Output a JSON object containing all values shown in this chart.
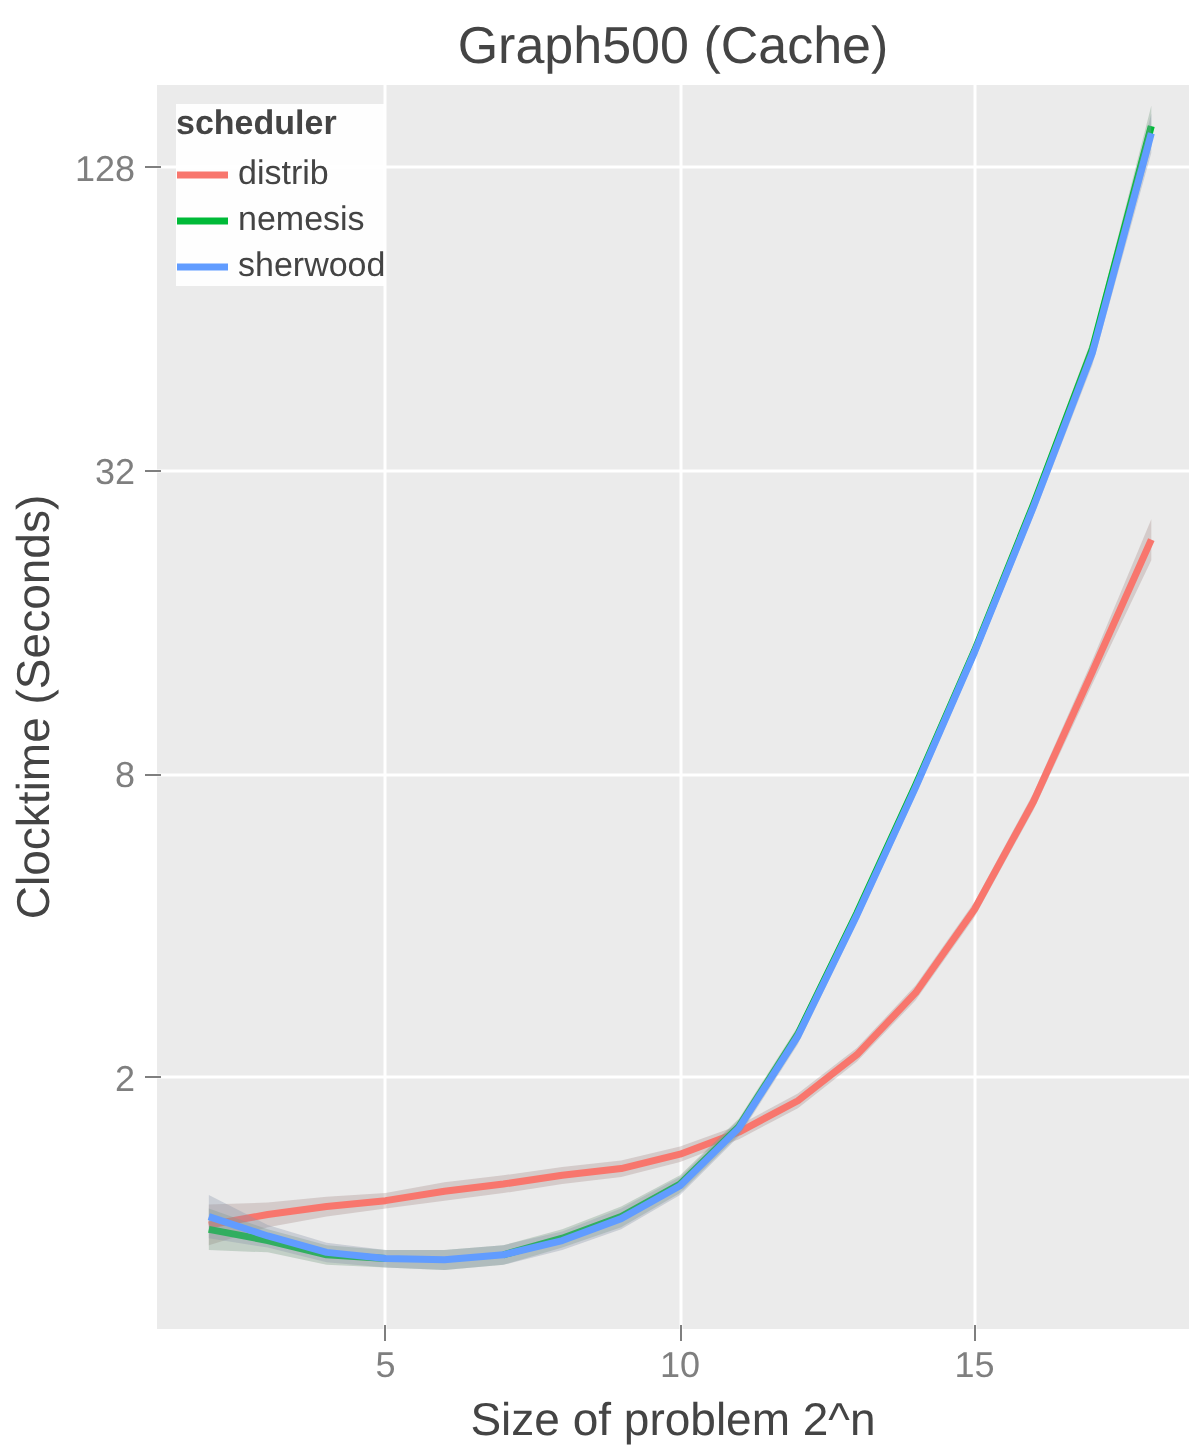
{
  "chart_data": {
    "type": "line",
    "title": "Graph500 (Cache)",
    "xlabel": "Size of problem 2^n",
    "ylabel": "Clocktime (Seconds)",
    "legend_title": "scheduler",
    "x": [
      2,
      3,
      4,
      5,
      6,
      7,
      8,
      9,
      10,
      11,
      12,
      13,
      14,
      15,
      16,
      17,
      18
    ],
    "series": [
      {
        "name": "distrib",
        "color": "#f8766d",
        "values": [
          1.02,
          1.07,
          1.11,
          1.14,
          1.19,
          1.23,
          1.28,
          1.32,
          1.41,
          1.56,
          1.8,
          2.22,
          2.95,
          4.32,
          7.07,
          12.8,
          23.4
        ],
        "lower": [
          0.93,
          1.01,
          1.06,
          1.1,
          1.14,
          1.18,
          1.23,
          1.27,
          1.36,
          1.51,
          1.74,
          2.15,
          2.85,
          4.17,
          6.8,
          12.1,
          21.3
        ],
        "upper": [
          1.12,
          1.13,
          1.16,
          1.18,
          1.24,
          1.28,
          1.33,
          1.37,
          1.46,
          1.61,
          1.86,
          2.29,
          3.05,
          4.47,
          7.35,
          13.5,
          25.7
        ]
      },
      {
        "name": "nemesis",
        "color": "#00ba38",
        "values": [
          1.0,
          0.95,
          0.89,
          0.875,
          null,
          0.89,
          0.96,
          1.06,
          1.23,
          1.6,
          2.44,
          4.24,
          7.62,
          14.1,
          27.5,
          56,
          155
        ],
        "lower": [
          0.91,
          0.9,
          0.85,
          0.84,
          0.83,
          0.85,
          0.92,
          1.01,
          1.18,
          1.54,
          2.35,
          4.1,
          7.35,
          13.6,
          26.4,
          53,
          141
        ],
        "upper": [
          1.1,
          1.0,
          0.93,
          0.91,
          0.91,
          0.93,
          1.0,
          1.11,
          1.28,
          1.66,
          2.53,
          4.38,
          7.9,
          14.6,
          28.6,
          59,
          170
        ]
      },
      {
        "name": "sherwood",
        "color": "#619cff",
        "values": [
          1.06,
          0.97,
          0.9,
          0.875,
          0.87,
          0.89,
          0.95,
          1.05,
          1.22,
          1.59,
          2.42,
          4.2,
          7.55,
          14.0,
          27.2,
          55,
          150
        ],
        "lower": [
          0.96,
          0.92,
          0.86,
          0.84,
          0.83,
          0.85,
          0.91,
          1.0,
          1.17,
          1.53,
          2.33,
          4.06,
          7.28,
          13.5,
          26.1,
          52,
          137
        ],
        "upper": [
          1.17,
          1.02,
          0.94,
          0.91,
          0.91,
          0.93,
          0.99,
          1.1,
          1.27,
          1.65,
          2.51,
          4.34,
          7.82,
          14.5,
          28.3,
          58,
          164
        ]
      }
    ],
    "log": "y",
    "xlim": [
      1.12,
      18.64
    ],
    "ylim": [
      0.634,
      187
    ],
    "xticks": [
      5,
      10,
      15
    ],
    "yticks": [
      2,
      8,
      32,
      128
    ],
    "grid": true,
    "legend": "top left",
    "marker": "none",
    "line_style": "solid"
  }
}
